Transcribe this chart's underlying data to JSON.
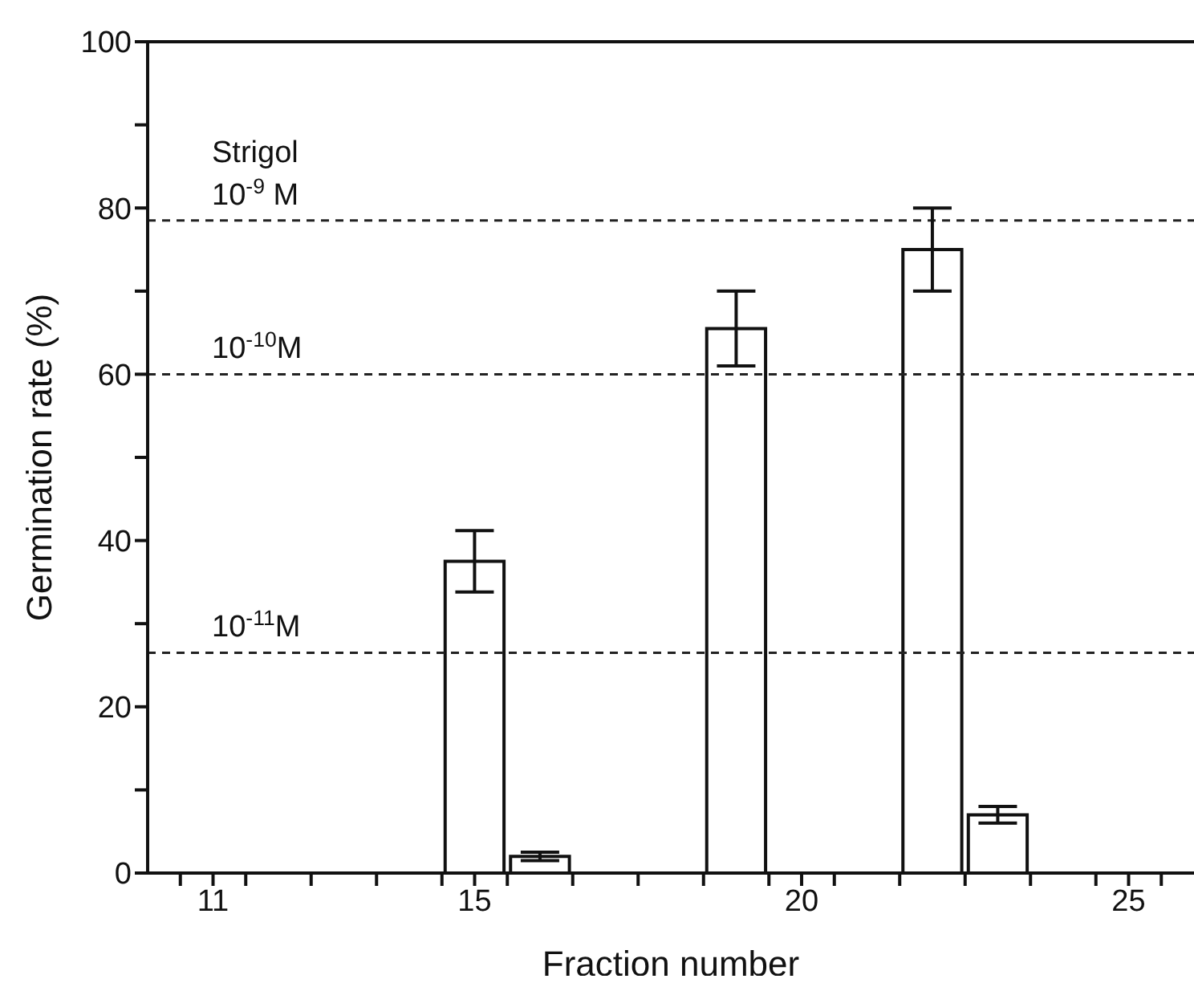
{
  "chart_data": {
    "type": "bar",
    "xlabel": "Fraction number",
    "ylabel": "Germination rate (%)",
    "x": [
      15,
      16,
      19,
      22,
      23
    ],
    "values": [
      37.5,
      2,
      65.5,
      75,
      7
    ],
    "errors": [
      3.7,
      0.5,
      4.5,
      5,
      1
    ],
    "color": "#ffffff",
    "xlim": [
      10,
      26
    ],
    "xticks": [
      {
        "value": 10.5,
        "label": null
      },
      {
        "value": 11,
        "label": "11"
      },
      {
        "value": 11.5,
        "label": null
      },
      {
        "value": 12.5,
        "label": null
      },
      {
        "value": 13.5,
        "label": null
      },
      {
        "value": 14.5,
        "label": null
      },
      {
        "value": 15,
        "label": "15"
      },
      {
        "value": 15.5,
        "label": null
      },
      {
        "value": 16.5,
        "label": null
      },
      {
        "value": 17.5,
        "label": null
      },
      {
        "value": 18.5,
        "label": null
      },
      {
        "value": 19.5,
        "label": null
      },
      {
        "value": 20,
        "label": "20"
      },
      {
        "value": 20.5,
        "label": null
      },
      {
        "value": 21.5,
        "label": null
      },
      {
        "value": 22.5,
        "label": null
      },
      {
        "value": 23.5,
        "label": null
      },
      {
        "value": 24.5,
        "label": null
      },
      {
        "value": 25,
        "label": "25"
      },
      {
        "value": 25.5,
        "label": null
      }
    ],
    "ylim": [
      0,
      100
    ],
    "yticks": [
      0,
      {
        "value": 10,
        "label": null
      },
      20,
      {
        "value": 30,
        "label": null
      },
      40,
      {
        "value": 50,
        "label": null
      },
      60,
      {
        "value": 70,
        "label": null
      },
      80,
      {
        "value": 90,
        "label": null
      },
      100
    ],
    "ref_lines": [
      {
        "axis": "y",
        "value": 78.5,
        "label": "10$^{-9}$ M",
        "line_style": "dashed"
      },
      {
        "axis": "y",
        "value": 60,
        "label": "10$^{-10}$M",
        "line_style": "dashed"
      },
      {
        "axis": "y",
        "value": 26.5,
        "label": "10$^{-11}$M",
        "line_style": "dashed"
      }
    ],
    "annotations": [
      "Strigol"
    ],
    "grid": false,
    "legend": false
  }
}
